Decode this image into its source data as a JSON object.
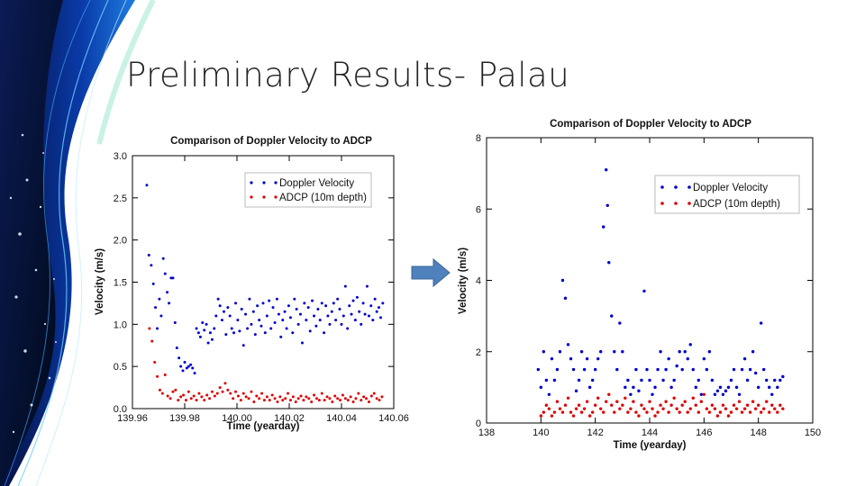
{
  "slide": {
    "title": "Preliminary Results- Palau"
  },
  "colors": {
    "doppler": "#0000cc",
    "adcp": "#dd0000",
    "arrow": "#4f81bd",
    "dark_bg": "#06144a",
    "accent": "#1c6fd6"
  },
  "chart_data": [
    {
      "type": "scatter",
      "title": "Comparison of Doppler Velocity to ADCP",
      "xlabel": "Time (yearday)",
      "ylabel": "Velocity (m/s)",
      "xlim": [
        139.96,
        140.06
      ],
      "ylim": [
        0,
        3.0
      ],
      "xticks": [
        "139.96",
        "139.98",
        "140.00",
        "140.02",
        "140.04",
        "140.06"
      ],
      "yticks": [
        "0.0",
        "0.5",
        "1.0",
        "1.5",
        "2.0",
        "2.5",
        "3.0"
      ],
      "legend": {
        "position": "top-right",
        "entries": [
          "Doppler Velocity",
          "ADCP (10m depth)"
        ]
      },
      "series": [
        {
          "name": "Doppler Velocity",
          "x": [
            139.9655,
            139.9663,
            139.9672,
            139.968,
            139.9688,
            139.9695,
            139.9703,
            139.971,
            139.9718,
            139.9725,
            139.9733,
            139.974,
            139.9748,
            139.9755,
            139.9763,
            139.977,
            139.9778,
            139.9785,
            139.9793,
            139.98,
            139.9808,
            139.9815,
            139.9823,
            139.983,
            139.9838,
            139.9845,
            139.9853,
            139.986,
            139.9868,
            139.9875,
            139.9883,
            139.989,
            139.9898,
            139.9905,
            139.9913,
            139.992,
            139.9928,
            139.9935,
            139.9943,
            139.995,
            139.9958,
            139.9965,
            139.9973,
            139.998,
            139.9988,
            139.9995,
            140.0003,
            140.001,
            140.0018,
            140.0025,
            140.0033,
            140.004,
            140.0048,
            140.0055,
            140.0063,
            140.007,
            140.0078,
            140.0085,
            140.0093,
            140.01,
            140.0108,
            140.0115,
            140.0123,
            140.013,
            140.0138,
            140.0145,
            140.0153,
            140.016,
            140.0168,
            140.0175,
            140.0183,
            140.019,
            140.0198,
            140.0205,
            140.0213,
            140.022,
            140.0228,
            140.0235,
            140.0243,
            140.025,
            140.0258,
            140.0265,
            140.0273,
            140.028,
            140.0288,
            140.0295,
            140.0303,
            140.031,
            140.0318,
            140.0325,
            140.0333,
            140.034,
            140.0348,
            140.0355,
            140.0363,
            140.037,
            140.0378,
            140.0385,
            140.0393,
            140.04,
            140.0408,
            140.0415,
            140.0423,
            140.043,
            140.0438,
            140.0445,
            140.0453,
            140.046,
            140.0468,
            140.0475,
            140.0483,
            140.049,
            140.0498,
            140.0505,
            140.0513,
            140.052,
            140.0528,
            140.0535,
            140.0543,
            140.055,
            140.0558
          ],
          "y": [
            2.65,
            1.82,
            1.7,
            1.48,
            1.2,
            0.95,
            1.3,
            1.1,
            1.78,
            1.6,
            1.38,
            1.25,
            1.55,
            1.55,
            1.02,
            0.72,
            0.6,
            0.5,
            0.45,
            0.55,
            0.48,
            0.5,
            0.52,
            0.48,
            0.42,
            0.95,
            0.9,
            0.85,
            1.02,
            0.93,
            1.0,
            0.78,
            0.9,
            0.82,
            0.95,
            1.1,
            1.3,
            1.22,
            1.05,
            1.15,
            0.88,
            1.2,
            1.1,
            0.95,
            0.9,
            1.25,
            1.05,
            0.92,
            1.18,
            0.75,
            1.12,
            0.95,
            1.3,
            1.0,
            1.15,
            0.88,
            1.22,
            1.05,
            0.98,
            1.25,
            0.9,
            1.1,
            1.28,
            0.95,
            1.2,
            1.02,
            1.3,
            1.12,
            0.85,
            1.05,
            1.15,
            0.95,
            1.22,
            1.08,
            0.9,
            1.3,
            1.18,
            1.0,
            1.12,
            0.78,
            1.25,
            1.05,
            1.2,
            0.92,
            1.28,
            1.1,
            0.98,
            1.18,
            1.05,
            1.25,
            0.9,
            1.22,
            1.1,
            1.0,
            1.15,
            1.25,
            1.05,
            1.3,
            1.18,
            1.0,
            1.1,
            1.45,
            0.95,
            1.22,
            1.12,
            1.28,
            1.05,
            1.32,
            1.15,
            1.0,
            1.25,
            1.12,
            1.45,
            1.1,
            1.22,
            1.05,
            1.3,
            1.15,
            1.2,
            1.08,
            1.25
          ]
        },
        {
          "name": "ADCP (10m depth)",
          "x": [
            139.9665,
            139.9675,
            139.9685,
            139.9695,
            139.9705,
            139.9715,
            139.9725,
            139.9735,
            139.9745,
            139.9755,
            139.9765,
            139.9775,
            139.9785,
            139.9795,
            139.9805,
            139.9815,
            139.9825,
            139.9835,
            139.9845,
            139.9855,
            139.9865,
            139.9875,
            139.9885,
            139.9895,
            139.9905,
            139.9915,
            139.9925,
            139.9935,
            139.9945,
            139.9955,
            139.9965,
            139.9975,
            139.9985,
            139.9995,
            140.0005,
            140.0015,
            140.0025,
            140.0035,
            140.0045,
            140.0055,
            140.0065,
            140.0075,
            140.0085,
            140.0095,
            140.0105,
            140.0115,
            140.0125,
            140.0135,
            140.0145,
            140.0155,
            140.0165,
            140.0175,
            140.0185,
            140.0195,
            140.0205,
            140.0215,
            140.0225,
            140.0235,
            140.0245,
            140.0255,
            140.0265,
            140.0275,
            140.0285,
            140.0295,
            140.0305,
            140.0315,
            140.0325,
            140.0335,
            140.0345,
            140.0355,
            140.0365,
            140.0375,
            140.0385,
            140.0395,
            140.0405,
            140.0415,
            140.0425,
            140.0435,
            140.0445,
            140.0455,
            140.0465,
            140.0475,
            140.0485,
            140.0495,
            140.0505,
            140.0515,
            140.0525,
            140.0535,
            140.0545,
            140.0555
          ],
          "y": [
            0.95,
            0.8,
            0.55,
            0.38,
            0.22,
            0.18,
            0.4,
            0.15,
            0.12,
            0.2,
            0.22,
            0.1,
            0.14,
            0.16,
            0.1,
            0.2,
            0.12,
            0.15,
            0.1,
            0.18,
            0.14,
            0.1,
            0.16,
            0.12,
            0.2,
            0.15,
            0.18,
            0.25,
            0.2,
            0.3,
            0.22,
            0.18,
            0.12,
            0.2,
            0.15,
            0.1,
            0.18,
            0.14,
            0.12,
            0.2,
            0.08,
            0.15,
            0.12,
            0.18,
            0.1,
            0.14,
            0.1,
            0.16,
            0.12,
            0.08,
            0.14,
            0.1,
            0.12,
            0.18,
            0.1,
            0.14,
            0.08,
            0.12,
            0.15,
            0.1,
            0.14,
            0.12,
            0.08,
            0.16,
            0.12,
            0.1,
            0.18,
            0.1,
            0.14,
            0.12,
            0.08,
            0.15,
            0.12,
            0.1,
            0.16,
            0.12,
            0.1,
            0.14,
            0.08,
            0.12,
            0.18,
            0.1,
            0.14,
            0.12,
            0.08,
            0.15,
            0.18,
            0.12,
            0.1,
            0.14
          ]
        }
      ]
    },
    {
      "type": "scatter",
      "title": "Comparison of Doppler Velocity to ADCP",
      "xlabel": "Time (yearday)",
      "ylabel": "Velocity (m/s)",
      "xlim": [
        138,
        150
      ],
      "ylim": [
        0,
        8
      ],
      "xticks": [
        "138",
        "140",
        "142",
        "144",
        "146",
        "148",
        "150"
      ],
      "yticks": [
        "0",
        "2",
        "4",
        "6",
        "8"
      ],
      "legend": {
        "position": "top-right",
        "entries": [
          "Doppler Velocity",
          "ADCP (10m depth)"
        ]
      },
      "series": [
        {
          "name": "Doppler Velocity",
          "x": [
            139.9,
            140.0,
            140.1,
            140.2,
            140.3,
            140.4,
            140.5,
            140.6,
            140.7,
            140.8,
            140.9,
            141.0,
            141.1,
            141.2,
            141.3,
            141.4,
            141.5,
            141.6,
            141.7,
            141.8,
            141.9,
            142.0,
            142.1,
            142.2,
            142.3,
            142.4,
            142.45,
            142.5,
            142.6,
            142.7,
            142.8,
            142.9,
            143.0,
            143.1,
            143.2,
            143.3,
            143.4,
            143.5,
            143.6,
            143.7,
            143.8,
            143.9,
            144.0,
            144.1,
            144.2,
            144.3,
            144.4,
            144.5,
            144.6,
            144.7,
            144.8,
            144.9,
            145.0,
            145.1,
            145.2,
            145.3,
            145.4,
            145.5,
            145.6,
            145.7,
            145.8,
            145.9,
            146.0,
            146.1,
            146.2,
            146.3,
            146.4,
            146.5,
            146.6,
            146.7,
            146.8,
            146.9,
            147.0,
            147.1,
            147.2,
            147.3,
            147.4,
            147.5,
            147.6,
            147.7,
            147.8,
            147.9,
            148.0,
            148.1,
            148.2,
            148.3,
            148.4,
            148.5,
            148.6,
            148.7,
            148.8,
            148.9
          ],
          "y": [
            1.5,
            1.0,
            2.0,
            1.2,
            0.8,
            1.8,
            1.2,
            1.5,
            2.0,
            4.0,
            3.5,
            2.2,
            1.8,
            1.5,
            0.9,
            1.2,
            2.0,
            1.5,
            1.8,
            1.0,
            1.2,
            1.5,
            1.8,
            2.0,
            5.5,
            7.1,
            6.1,
            4.5,
            3.0,
            2.0,
            1.5,
            2.8,
            2.0,
            1.0,
            1.2,
            0.8,
            1.0,
            1.5,
            0.9,
            1.2,
            3.7,
            1.5,
            1.2,
            0.8,
            1.0,
            1.5,
            2.0,
            1.2,
            1.5,
            1.8,
            1.0,
            1.2,
            1.6,
            2.0,
            1.5,
            2.0,
            1.8,
            2.2,
            1.5,
            1.0,
            1.2,
            0.8,
            1.8,
            1.5,
            2.0,
            1.2,
            0.8,
            0.9,
            1.0,
            0.8,
            0.9,
            1.0,
            1.2,
            1.5,
            1.0,
            0.8,
            1.5,
            1.8,
            1.2,
            1.5,
            2.0,
            1.4,
            1.0,
            2.8,
            1.5,
            1.2,
            1.0,
            0.8,
            1.2,
            1.0,
            1.2,
            1.3
          ]
        },
        {
          "name": "ADCP (10m depth)",
          "x": [
            140.0,
            140.1,
            140.2,
            140.3,
            140.4,
            140.5,
            140.6,
            140.7,
            140.8,
            140.9,
            141.0,
            141.1,
            141.2,
            141.3,
            141.4,
            141.5,
            141.6,
            141.7,
            141.8,
            141.9,
            142.0,
            142.1,
            142.2,
            142.3,
            142.4,
            142.5,
            142.6,
            142.7,
            142.8,
            142.9,
            143.0,
            143.1,
            143.2,
            143.3,
            143.4,
            143.5,
            143.6,
            143.7,
            143.8,
            143.9,
            144.0,
            144.1,
            144.2,
            144.3,
            144.4,
            144.5,
            144.6,
            144.7,
            144.8,
            144.9,
            145.0,
            145.1,
            145.2,
            145.3,
            145.4,
            145.5,
            145.6,
            145.7,
            145.8,
            145.9,
            146.0,
            146.1,
            146.2,
            146.3,
            146.4,
            146.5,
            146.6,
            146.7,
            146.8,
            146.9,
            147.0,
            147.1,
            147.2,
            147.3,
            147.4,
            147.5,
            147.6,
            147.7,
            147.8,
            147.9,
            148.0,
            148.1,
            148.2,
            148.3,
            148.4,
            148.5,
            148.6,
            148.7,
            148.8,
            148.9
          ],
          "y": [
            0.2,
            0.3,
            0.5,
            0.4,
            0.2,
            0.3,
            0.6,
            0.4,
            0.3,
            0.5,
            0.7,
            0.3,
            0.2,
            0.4,
            0.5,
            0.3,
            0.4,
            0.6,
            0.2,
            0.3,
            0.5,
            0.7,
            0.4,
            0.3,
            0.6,
            0.8,
            0.5,
            0.3,
            0.6,
            0.4,
            0.5,
            0.7,
            0.3,
            0.4,
            0.6,
            0.3,
            0.2,
            0.5,
            0.4,
            0.3,
            0.6,
            0.4,
            0.2,
            0.3,
            0.5,
            0.4,
            0.6,
            0.3,
            0.5,
            0.7,
            0.4,
            0.3,
            0.5,
            0.6,
            0.3,
            0.4,
            0.7,
            0.5,
            0.3,
            0.6,
            0.8,
            0.4,
            0.3,
            0.5,
            0.4,
            0.2,
            0.3,
            0.5,
            0.4,
            0.2,
            0.3,
            0.5,
            0.4,
            0.6,
            0.3,
            0.4,
            0.5,
            0.3,
            0.6,
            0.4,
            0.5,
            0.3,
            0.4,
            0.6,
            0.3,
            0.5,
            0.4,
            0.3,
            0.5,
            0.4
          ]
        }
      ]
    }
  ]
}
